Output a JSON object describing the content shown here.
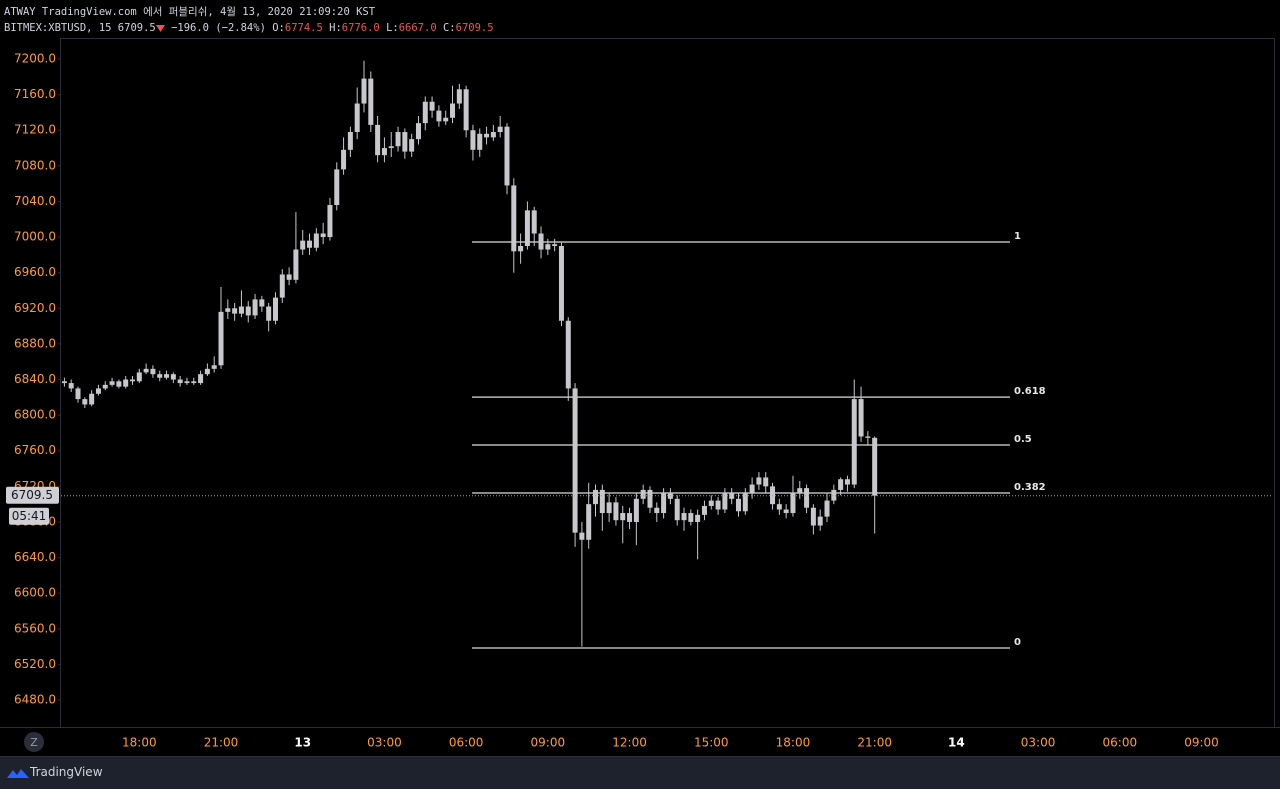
{
  "header": {
    "publisher": "ATWAY TradingView.com 에서 퍼블리쉬, 4월 13, 2020 21:09:20 KST",
    "symbol": "BITMEX:XBTUSD, 15",
    "last": "6709.5",
    "change": "−196.0 (−2.84%)",
    "o_label": "O:",
    "open": "6774.5",
    "h_label": "H:",
    "high": "6776.0",
    "l_label": "L:",
    "low": "6667.0",
    "c_label": "C:",
    "close": "6709.5"
  },
  "footer": {
    "brand": "TradingView",
    "zoom_button": "Z"
  },
  "chart_data": {
    "type": "candlestick",
    "color": "#c8c8cc",
    "categories": [
      null,
      null,
      null,
      null,
      null,
      null,
      null,
      null,
      null,
      null,
      null,
      "18:00",
      null,
      null,
      null,
      null,
      null,
      null,
      null,
      null,
      null,
      null,
      null,
      "21:00",
      null,
      null,
      null,
      null,
      null,
      null,
      null,
      null,
      null,
      null,
      null,
      "13",
      null,
      null,
      null,
      null,
      null,
      null,
      null,
      null,
      null,
      null,
      null,
      "03:00",
      null,
      null,
      null,
      null,
      null,
      null,
      null,
      null,
      null,
      null,
      null,
      "06:00",
      null,
      null,
      null,
      null,
      null,
      null,
      null,
      null,
      null,
      null,
      null,
      "09:00",
      null,
      null,
      null,
      null,
      null,
      null,
      null,
      null,
      null,
      null,
      null,
      "12:00",
      null,
      null,
      null,
      null,
      null,
      null,
      null,
      null,
      null,
      null,
      null,
      "15:00",
      null,
      null,
      null,
      null,
      null,
      null,
      null,
      null,
      null,
      null,
      null,
      "18:00",
      null,
      null,
      null,
      null,
      null,
      null,
      null,
      null,
      null,
      null,
      null,
      "21:00",
      null,
      null,
      null,
      null,
      null,
      null,
      null,
      null,
      null,
      null,
      null,
      "14",
      null,
      null,
      null,
      null,
      null,
      null,
      null,
      null,
      null,
      null,
      null,
      "03:00",
      null,
      null,
      null,
      null,
      null,
      null,
      null,
      null,
      null,
      null,
      null,
      "06:00",
      null,
      null,
      null,
      null,
      null,
      null,
      null,
      null,
      null,
      null,
      null,
      "09:00",
      null,
      null,
      null,
      null,
      null,
      null,
      null,
      null,
      null,
      null
    ],
    "open": [
      6838,
      6836,
      6830,
      6818,
      6812,
      6824,
      6830,
      6834,
      6838,
      6832,
      6840,
      6838,
      6848,
      6852,
      6846,
      6842,
      6846,
      6840,
      6836,
      6838,
      6836,
      6846,
      6852,
      6856,
      6916,
      6920,
      6914,
      6922,
      6912,
      6930,
      6922,
      6906,
      6932,
      6958,
      6952,
      6986,
      6996,
      6988,
      7004,
      7000,
      7036,
      7076,
      7098,
      7118,
      7150,
      7178,
      7126,
      7092,
      7100,
      7102,
      7118,
      7096,
      7110,
      7128,
      7152,
      7142,
      7130,
      7134,
      7150,
      7166,
      7120,
      7098,
      7116,
      7112,
      7118,
      7124,
      7058,
      6984,
      6990,
      7030,
      7004,
      6986,
      6992,
      6990,
      6906,
      6830,
      6668,
      6660,
      6700,
      6716,
      6690,
      6702,
      6682,
      6690,
      6680,
      6706,
      6716,
      6696,
      6690,
      6712,
      6706,
      6682,
      6690,
      6680,
      6688,
      6698,
      6704,
      6694,
      6712,
      6706,
      6692,
      6712,
      6722,
      6730,
      6720,
      6700,
      6694,
      6690,
      6712,
      6718,
      6696,
      6676,
      6686,
      6704,
      6716,
      6728,
      6722,
      6818,
      6776,
      6774.5,
      null,
      null,
      null,
      null,
      null,
      null,
      null,
      null,
      null,
      null,
      null,
      null,
      null,
      null,
      null,
      null,
      null,
      null,
      null,
      null,
      null,
      null,
      null,
      null,
      null,
      null,
      null,
      null,
      null,
      null,
      null,
      null,
      null,
      null,
      null,
      null,
      null,
      null,
      null,
      null,
      null,
      null,
      null,
      null,
      null,
      null,
      null,
      null,
      null,
      null,
      null,
      null,
      null,
      null,
      null,
      null,
      null,
      null
    ],
    "high": [
      6842,
      6840,
      6832,
      6820,
      6828,
      6834,
      6838,
      6842,
      6840,
      6844,
      6844,
      6852,
      6858,
      6856,
      6850,
      6850,
      6848,
      6844,
      6842,
      6842,
      6850,
      6858,
      6866,
      6944,
      6930,
      6926,
      6940,
      6928,
      6936,
      6934,
      6926,
      6938,
      6964,
      6966,
      7028,
      7008,
      7004,
      7010,
      7016,
      7044,
      7084,
      7112,
      7124,
      7168,
      7198,
      7186,
      7136,
      7112,
      7118,
      7124,
      7122,
      7116,
      7136,
      7158,
      7158,
      7148,
      7142,
      7170,
      7172,
      7170,
      7126,
      7122,
      7124,
      7126,
      7136,
      7128,
      7066,
      7004,
      7040,
      7034,
      7012,
      6998,
      6998,
      6994,
      6910,
      6836,
      6680,
      6724,
      6722,
      6722,
      6712,
      6708,
      6698,
      6696,
      6712,
      6722,
      6720,
      6702,
      6718,
      6718,
      6710,
      6696,
      6694,
      6694,
      6704,
      6710,
      6708,
      6718,
      6718,
      6712,
      6718,
      6730,
      6736,
      6736,
      6724,
      6706,
      6700,
      6732,
      6726,
      6722,
      6700,
      6694,
      6712,
      6722,
      6730,
      6732,
      6840,
      6832,
      6782,
      6776,
      null,
      null,
      null,
      null,
      null,
      null,
      null,
      null,
      null,
      null,
      null,
      null,
      null,
      null,
      null,
      null,
      null,
      null,
      null,
      null,
      null,
      null,
      null,
      null,
      null,
      null,
      null,
      null,
      null,
      null,
      null,
      null,
      null,
      null,
      null,
      null,
      null,
      null,
      null,
      null,
      null,
      null,
      null,
      null,
      null,
      null,
      null,
      null,
      null,
      null,
      null,
      null,
      null,
      null,
      null,
      null,
      null,
      null
    ],
    "low": [
      6832,
      6826,
      6814,
      6808,
      6810,
      6822,
      6828,
      6832,
      6830,
      6830,
      6834,
      6836,
      6846,
      6842,
      6838,
      6840,
      6836,
      6832,
      6834,
      6834,
      6834,
      6844,
      6848,
      6852,
      6908,
      6906,
      6910,
      6904,
      6908,
      6916,
      6894,
      6902,
      6926,
      6946,
      6948,
      6980,
      6980,
      6984,
      6992,
      6996,
      7030,
      7070,
      7090,
      7110,
      7140,
      7118,
      7084,
      7084,
      7090,
      7096,
      7088,
      7090,
      7104,
      7120,
      7134,
      7124,
      7126,
      7128,
      7144,
      7112,
      7086,
      7090,
      7104,
      7108,
      7112,
      7048,
      6960,
      6970,
      6986,
      6990,
      6976,
      6980,
      6984,
      6900,
      6816,
      6652,
      6540,
      6650,
      6686,
      6670,
      6680,
      6676,
      6656,
      6672,
      6654,
      6700,
      6690,
      6680,
      6684,
      6700,
      6676,
      6670,
      6676,
      6638,
      6682,
      6694,
      6688,
      6690,
      6700,
      6686,
      6688,
      6706,
      6716,
      6712,
      6694,
      6688,
      6684,
      6686,
      6706,
      6690,
      6666,
      6670,
      6680,
      6700,
      6710,
      6714,
      6718,
      6770,
      6766,
      6667,
      null,
      null,
      null,
      null,
      null,
      null,
      null,
      null,
      null,
      null,
      null,
      null,
      null,
      null,
      null,
      null,
      null,
      null,
      null,
      null,
      null,
      null,
      null,
      null,
      null,
      null,
      null,
      null,
      null,
      null,
      null,
      null,
      null,
      null,
      null,
      null,
      null,
      null,
      null,
      null,
      null,
      null,
      null,
      null,
      null,
      null,
      null,
      null,
      null,
      null,
      null,
      null,
      null,
      null,
      null,
      null,
      null,
      null
    ],
    "close": [
      6836,
      6830,
      6818,
      6812,
      6824,
      6830,
      6834,
      6838,
      6832,
      6840,
      6838,
      6848,
      6852,
      6846,
      6842,
      6846,
      6840,
      6836,
      6838,
      6836,
      6846,
      6852,
      6856,
      6916,
      6920,
      6914,
      6922,
      6912,
      6930,
      6922,
      6906,
      6932,
      6958,
      6952,
      6986,
      6996,
      6988,
      7004,
      7000,
      7036,
      7076,
      7098,
      7118,
      7150,
      7178,
      7126,
      7092,
      7100,
      7102,
      7118,
      7096,
      7110,
      7128,
      7152,
      7142,
      7130,
      7134,
      7150,
      7166,
      7120,
      7098,
      7116,
      7112,
      7118,
      7124,
      7058,
      6984,
      6990,
      7030,
      7004,
      6986,
      6992,
      6990,
      6906,
      6830,
      6668,
      6660,
      6700,
      6716,
      6690,
      6702,
      6682,
      6690,
      6680,
      6706,
      6716,
      6696,
      6690,
      6712,
      6706,
      6682,
      6690,
      6680,
      6688,
      6698,
      6704,
      6694,
      6712,
      6706,
      6692,
      6712,
      6722,
      6730,
      6720,
      6700,
      6694,
      6690,
      6712,
      6718,
      6696,
      6676,
      6686,
      6704,
      6716,
      6728,
      6722,
      6818,
      6776,
      6774.5,
      6709.5,
      null,
      null,
      null,
      null,
      null,
      null,
      null,
      null,
      null,
      null,
      null,
      null,
      null,
      null,
      null,
      null,
      null,
      null,
      null,
      null,
      null,
      null,
      null,
      null,
      null,
      null,
      null,
      null,
      null,
      null,
      null,
      null,
      null,
      null,
      null,
      null,
      null,
      null,
      null,
      null,
      null,
      null,
      null,
      null,
      null,
      null,
      null,
      null,
      null,
      null,
      null,
      null,
      null,
      null,
      null,
      null,
      null,
      null
    ],
    "ylim": [
      6449.7,
      7223.6
    ],
    "yticks": [
      {
        "value": 6480,
        "label": "6480.0"
      },
      {
        "value": 6520,
        "label": "6520.0"
      },
      {
        "value": 6560,
        "label": "6560.0"
      },
      {
        "value": 6600,
        "label": "6600.0"
      },
      {
        "value": 6640,
        "label": "6640.0"
      },
      {
        "value": 6680,
        "label": "6680.0"
      },
      {
        "value": 6720,
        "label": "6720.0"
      },
      {
        "value": 6760,
        "label": "6760.0"
      },
      {
        "value": 6800,
        "label": "6800.0"
      },
      {
        "value": 6840,
        "label": "6840.0"
      },
      {
        "value": 6880,
        "label": "6880.0"
      },
      {
        "value": 6920,
        "label": "6920.0"
      },
      {
        "value": 6960,
        "label": "6960.0"
      },
      {
        "value": 7000,
        "label": "7000.0"
      },
      {
        "value": 7040,
        "label": "7040.0"
      },
      {
        "value": 7080,
        "label": "7080.0"
      },
      {
        "value": 7120,
        "label": "7120.0"
      },
      {
        "value": 7160,
        "label": "7160.0"
      },
      {
        "value": 7200,
        "label": "7200.0"
      }
    ],
    "grid": false,
    "last_price": 6709.5,
    "countdown": "05:41",
    "fib_levels": [
      {
        "ratio": 1,
        "price": 6994.4
      },
      {
        "ratio": 0.618,
        "price": 6820.2
      },
      {
        "ratio": 0.5,
        "price": 6766.4
      },
      {
        "ratio": 0.382,
        "price": 6712.6
      },
      {
        "ratio": 0,
        "price": 6538.4
      }
    ]
  }
}
